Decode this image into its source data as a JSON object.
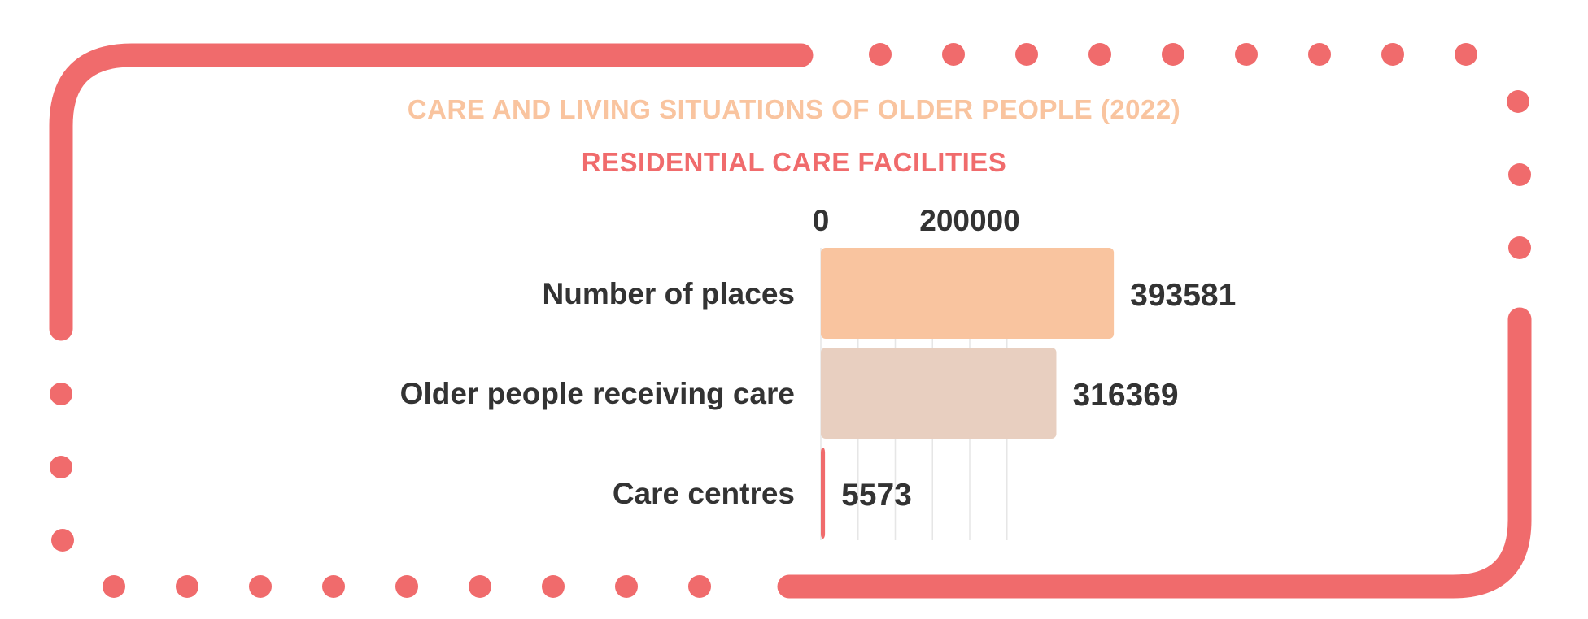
{
  "colors": {
    "frame": "#f06b6c",
    "title": "#f9c49f",
    "subtitle": "#f06b6c",
    "text": "#333333",
    "grid": "#e6e6e6"
  },
  "header": {
    "title": "CARE AND LIVING SITUATIONS OF OLDER PEOPLE (2022)",
    "subtitle": "RESIDENTIAL CARE FACILITIES"
  },
  "chart_data": {
    "type": "bar",
    "orientation": "horizontal",
    "title": "CARE AND LIVING SITUATIONS OF OLDER PEOPLE (2022)",
    "subtitle": "RESIDENTIAL CARE FACILITIES",
    "categories": [
      "Number of places",
      "Older people receiving care",
      "Care centres"
    ],
    "values": [
      393581,
      316369,
      5573
    ],
    "value_labels": [
      "393581",
      "316369",
      "5573"
    ],
    "bar_colors": [
      "#f9c49f",
      "#e8cfc0",
      "#f06b6c"
    ],
    "x_ticks": [
      0,
      200000
    ],
    "x_tick_labels": [
      "0",
      "200000"
    ],
    "xlim": [
      0,
      400000
    ],
    "grid": true,
    "legend": "none"
  }
}
